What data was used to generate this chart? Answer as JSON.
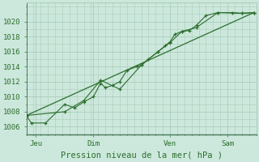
{
  "xlabel": "Pression niveau de la mer( hPa )",
  "bg_color": "#cce8dc",
  "grid_color": "#aaccbb",
  "line_color": "#2d6e2d",
  "ylim": [
    1005.0,
    1022.5
  ],
  "yticks": [
    1006,
    1008,
    1010,
    1012,
    1014,
    1016,
    1018,
    1020
  ],
  "xlim": [
    0,
    96
  ],
  "day_ticks": [
    4,
    28,
    60,
    84
  ],
  "day_labels": [
    "Jeu",
    "Dim",
    "Ven",
    "Sam"
  ],
  "vline_positions": [
    4,
    28,
    60,
    84
  ],
  "series1_x": [
    0,
    2,
    8,
    16,
    20,
    24,
    28,
    31,
    33,
    36,
    39,
    42,
    46,
    48,
    51,
    55,
    58,
    60,
    62,
    65,
    68,
    71,
    75,
    80,
    86,
    90,
    95
  ],
  "series1_y": [
    1007.5,
    1006.5,
    1006.5,
    1009.0,
    1008.5,
    1009.3,
    1010.0,
    1011.8,
    1011.2,
    1011.5,
    1012.0,
    1013.5,
    1014.0,
    1014.2,
    1015.0,
    1016.0,
    1016.8,
    1017.3,
    1018.3,
    1018.7,
    1018.8,
    1019.5,
    1020.8,
    1021.2,
    1021.2,
    1021.1,
    1021.2
  ],
  "series2_x": [
    0,
    16,
    24,
    31,
    39,
    48,
    55,
    60,
    65,
    71,
    80,
    90,
    95
  ],
  "series2_y": [
    1007.5,
    1008.0,
    1009.5,
    1012.2,
    1011.0,
    1014.2,
    1016.0,
    1017.2,
    1018.7,
    1019.2,
    1021.2,
    1021.1,
    1021.2
  ],
  "trend_x": [
    0,
    95
  ],
  "trend_y": [
    1007.5,
    1021.2
  ],
  "minor_ytick_interval": 1,
  "minor_xtick_interval": 3
}
